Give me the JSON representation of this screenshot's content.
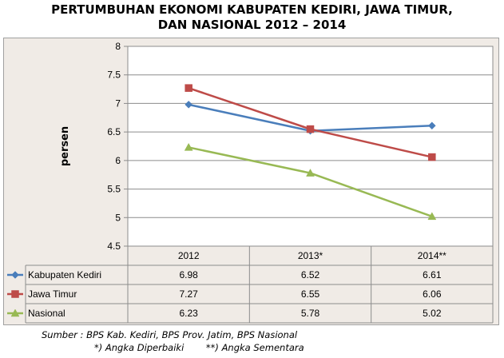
{
  "title": {
    "line1": "PERTUMBUHAN EKONOMI KABUPATEN KEDIRI, JAWA TIMUR,",
    "line2": "DAN NASIONAL 2012 – 2014"
  },
  "footer": {
    "source": "Sumber : BPS Kab. Kediri, BPS Prov. Jatim, BPS Nasional",
    "note1": "*) Angka Diperbaiki",
    "note2": "**) Angka Sementara"
  },
  "chart_data": {
    "type": "line",
    "title": "PERTUMBUHAN EKONOMI KABUPATEN KEDIRI, JAWA TIMUR, DAN NASIONAL 2012 – 2014",
    "xlabel": "",
    "ylabel": "persen",
    "categories": [
      "2012",
      "2013*",
      "2014**"
    ],
    "ylim": [
      4.5,
      8
    ],
    "yticks": [
      "4.5",
      "5",
      "5.5",
      "6",
      "6.5",
      "7",
      "7.5",
      "8"
    ],
    "grid": true,
    "legend": "data-table-left",
    "series": [
      {
        "name": "Kabupaten Kediri",
        "values": [
          6.98,
          6.52,
          6.61
        ],
        "labels": [
          "6.98",
          "6.52",
          "6.61"
        ],
        "color": "#4a7ebb",
        "marker": "diamond"
      },
      {
        "name": "Jawa Timur",
        "values": [
          7.27,
          6.55,
          6.06
        ],
        "labels": [
          "7.27",
          "6.55",
          "6.06"
        ],
        "color": "#be4b48",
        "marker": "square"
      },
      {
        "name": "Nasional",
        "values": [
          6.23,
          5.78,
          5.02
        ],
        "labels": [
          "6.23",
          "5.78",
          "5.02"
        ],
        "color": "#98b954",
        "marker": "triangle"
      }
    ]
  }
}
